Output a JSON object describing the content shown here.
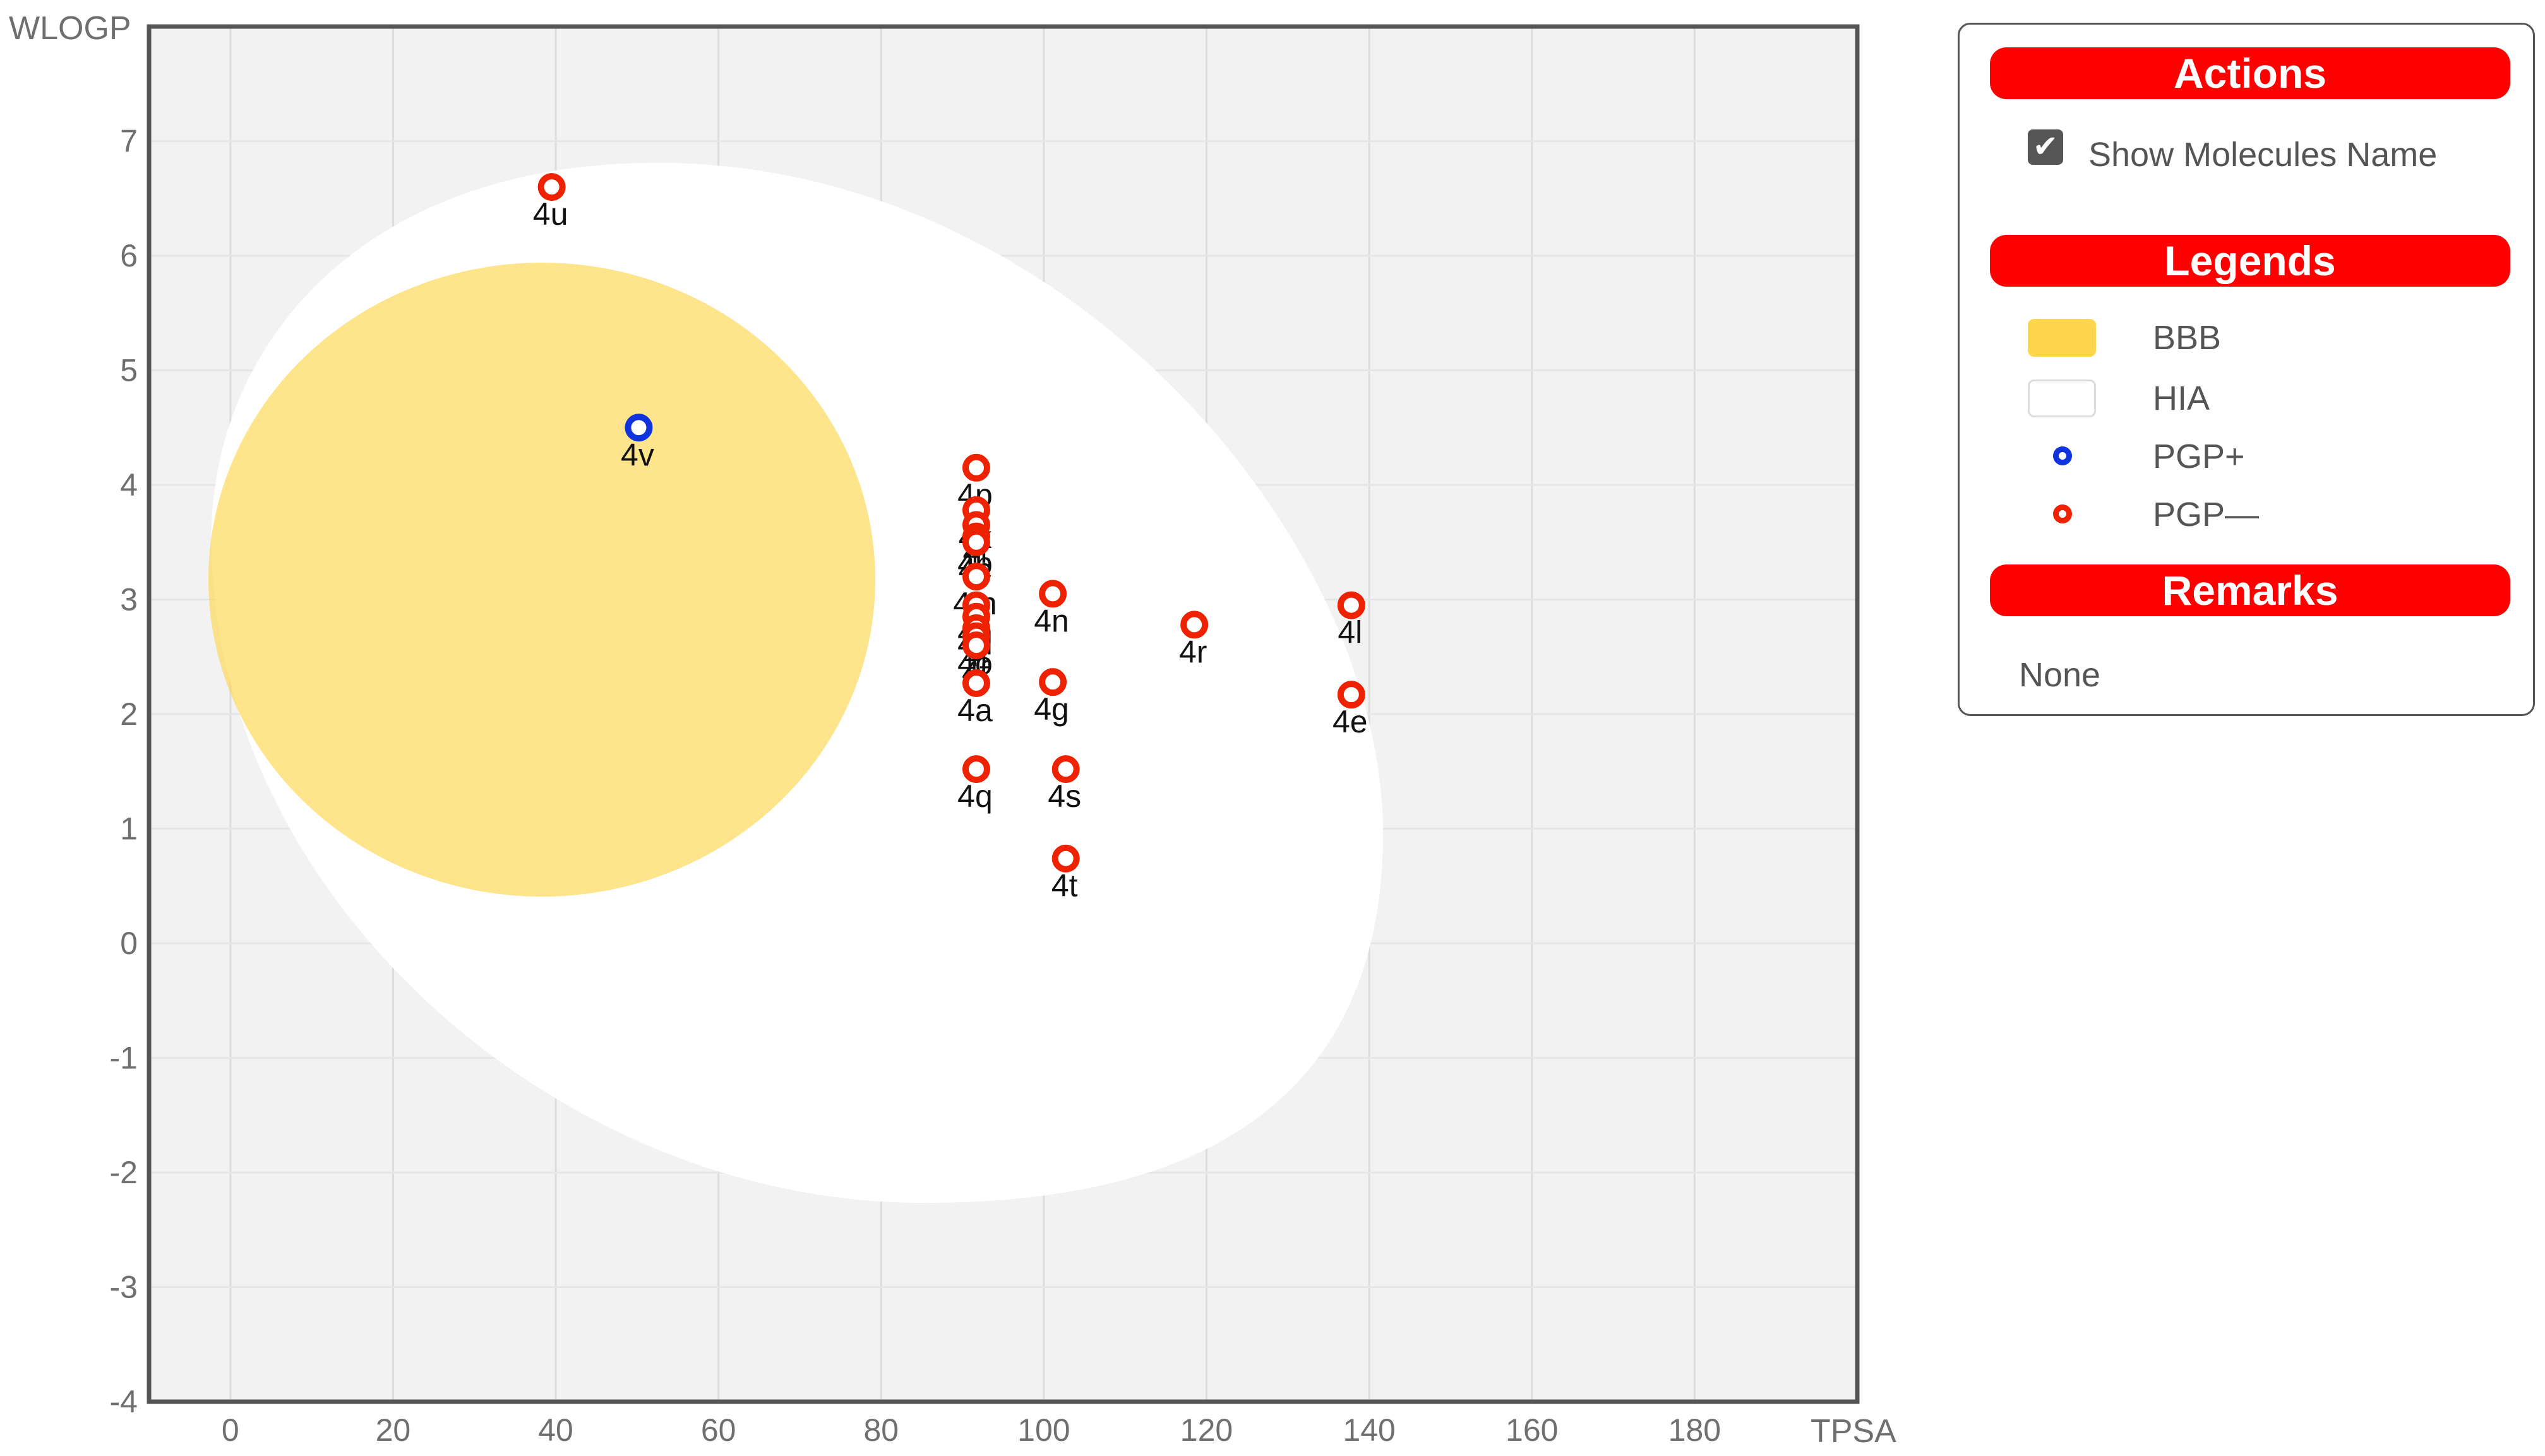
{
  "chart_data": {
    "type": "scatter",
    "title": "",
    "xlabel": "TPSA",
    "ylabel": "WLOGP",
    "xlim": [
      -10,
      200
    ],
    "ylim": [
      -4,
      8
    ],
    "x_ticks": [
      0,
      20,
      40,
      60,
      80,
      100,
      120,
      140,
      160,
      180
    ],
    "y_ticks": [
      -4,
      -3,
      -2,
      -1,
      0,
      1,
      2,
      3,
      4,
      5,
      6,
      7
    ],
    "regions": [
      {
        "name": "HIA",
        "color": "#ffffff",
        "shape": "egg-ellipse"
      },
      {
        "name": "BBB",
        "color": "#fdd862",
        "shape": "ellipse"
      }
    ],
    "series": [
      {
        "name": "PGP+",
        "color": "#1133dd",
        "points": [
          {
            "label": "4v",
            "x": 50.2,
            "y": 4.5
          }
        ]
      },
      {
        "name": "PGP—",
        "color": "#ee2200",
        "points": [
          {
            "label": "4u",
            "x": 39.5,
            "y": 6.6
          },
          {
            "label": "4p",
            "x": 91.7,
            "y": 4.15
          },
          {
            "label": "4k",
            "x": 91.7,
            "y": 3.78
          },
          {
            "label": "4i",
            "x": 91.7,
            "y": 3.65
          },
          {
            "label": "4b",
            "x": 91.7,
            "y": 3.55
          },
          {
            "label": "4c",
            "x": 91.7,
            "y": 3.5
          },
          {
            "label": "4m",
            "x": 91.7,
            "y": 3.2
          },
          {
            "label": "4h",
            "x": 91.7,
            "y": 2.95
          },
          {
            "label": "4d",
            "x": 91.7,
            "y": 2.85
          },
          {
            "label": "4j",
            "x": 91.7,
            "y": 2.75
          },
          {
            "label": "4o",
            "x": 91.7,
            "y": 2.68
          },
          {
            "label": "4f",
            "x": 91.7,
            "y": 2.6
          },
          {
            "label": "4a",
            "x": 91.7,
            "y": 2.27
          },
          {
            "label": "4q",
            "x": 91.7,
            "y": 1.52
          },
          {
            "label": "4n",
            "x": 101.1,
            "y": 3.05
          },
          {
            "label": "4g",
            "x": 101.1,
            "y": 2.28
          },
          {
            "label": "4s",
            "x": 102.7,
            "y": 1.52
          },
          {
            "label": "4t",
            "x": 102.7,
            "y": 0.74
          },
          {
            "label": "4r",
            "x": 118.5,
            "y": 2.78
          },
          {
            "label": "4l",
            "x": 137.8,
            "y": 2.95
          },
          {
            "label": "4e",
            "x": 137.8,
            "y": 2.17
          }
        ]
      }
    ]
  },
  "panel": {
    "actions_title": "Actions",
    "show_names_label": "Show Molecules Name",
    "show_names_checked": true,
    "legends_title": "Legends",
    "legend": [
      {
        "label": "BBB",
        "kind": "swatch",
        "color": "#fdd64d"
      },
      {
        "label": "HIA",
        "kind": "swatch",
        "color": "#ffffff"
      },
      {
        "label": "PGP+",
        "kind": "marker",
        "color": "#1133dd"
      },
      {
        "label": "PGP—",
        "kind": "marker",
        "color": "#ee2200"
      }
    ],
    "remarks_title": "Remarks",
    "remarks_text": "None"
  }
}
